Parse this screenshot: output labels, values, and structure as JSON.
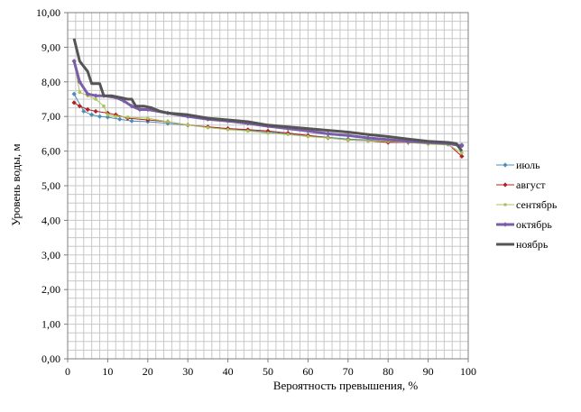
{
  "chart_data": {
    "type": "line",
    "xlabel": "Вероятность превышения, %",
    "ylabel": "Уровень воды, м",
    "xlim": [
      0,
      100
    ],
    "ylim": [
      0,
      10
    ],
    "x_ticks": [
      "0",
      "10",
      "20",
      "30",
      "40",
      "50",
      "60",
      "70",
      "80",
      "90",
      "100"
    ],
    "y_ticks": [
      "0,00",
      "1,00",
      "2,00",
      "3,00",
      "4,00",
      "5,00",
      "6,00",
      "7,00",
      "8,00",
      "9,00",
      "10,00"
    ],
    "grid": "minor, 2 by 0.25",
    "legend": "right",
    "series": [
      {
        "name": "июль",
        "color": "#4a8fb8",
        "width": 1,
        "marker": "diamond",
        "x": [
          1.6,
          4,
          6,
          8,
          10,
          13,
          16,
          20,
          25,
          30,
          35,
          40,
          45,
          50,
          55,
          60,
          65,
          70,
          75,
          80,
          85,
          90,
          95,
          98.4
        ],
        "y": [
          7.65,
          7.15,
          7.05,
          7.0,
          6.98,
          6.92,
          6.87,
          6.85,
          6.8,
          6.75,
          6.7,
          6.65,
          6.6,
          6.55,
          6.5,
          6.45,
          6.4,
          6.35,
          6.32,
          6.28,
          6.25,
          6.22,
          6.2,
          6.18
        ]
      },
      {
        "name": "август",
        "color": "#b22222",
        "width": 1,
        "marker": "diamond",
        "x": [
          1.6,
          3,
          5,
          7,
          10,
          12,
          15,
          20,
          25,
          30,
          35,
          40,
          45,
          50,
          55,
          60,
          65,
          70,
          75,
          80,
          85,
          90,
          95,
          98.4
        ],
        "y": [
          7.4,
          7.3,
          7.2,
          7.15,
          7.1,
          7.05,
          6.95,
          6.9,
          6.85,
          6.75,
          6.7,
          6.65,
          6.62,
          6.58,
          6.52,
          6.45,
          6.38,
          6.32,
          6.3,
          6.25,
          6.25,
          6.22,
          6.2,
          5.85
        ]
      },
      {
        "name": "сентябрь",
        "color": "#a8c45a",
        "width": 1,
        "marker": "dot",
        "x": [
          1.6,
          3,
          5,
          7,
          9,
          10,
          12,
          15,
          20,
          25,
          30,
          35,
          40,
          45,
          50,
          55,
          60,
          65,
          70,
          75,
          80,
          85,
          90,
          95,
          98.4
        ],
        "y": [
          8.6,
          7.7,
          7.6,
          7.5,
          7.3,
          7.05,
          7.0,
          6.98,
          6.95,
          6.85,
          6.75,
          6.68,
          6.62,
          6.58,
          6.52,
          6.48,
          6.42,
          6.38,
          6.32,
          6.3,
          6.28,
          6.25,
          6.2,
          6.18,
          5.95
        ]
      },
      {
        "name": "октябрь",
        "color": "#7b5ea7",
        "width": 3,
        "marker": "diamond",
        "x": [
          1.6,
          3,
          5,
          7,
          9,
          12,
          14,
          16,
          18,
          20,
          25,
          30,
          35,
          40,
          45,
          50,
          55,
          60,
          65,
          70,
          75,
          80,
          85,
          90,
          95,
          98.4
        ],
        "y": [
          8.6,
          8.0,
          7.65,
          7.6,
          7.6,
          7.55,
          7.45,
          7.3,
          7.2,
          7.2,
          7.1,
          7.0,
          6.92,
          6.87,
          6.8,
          6.72,
          6.65,
          6.58,
          6.5,
          6.45,
          6.38,
          6.33,
          6.28,
          6.25,
          6.22,
          6.15
        ]
      },
      {
        "name": "ноябрь",
        "color": "#555555",
        "width": 3,
        "marker": "none",
        "x": [
          1.6,
          3,
          5,
          6,
          8,
          9,
          11,
          13,
          15,
          16,
          17,
          19,
          21,
          23,
          25,
          30,
          35,
          40,
          45,
          50,
          55,
          60,
          65,
          70,
          75,
          80,
          85,
          90,
          95,
          97,
          98.4
        ],
        "y": [
          9.25,
          8.6,
          8.3,
          7.95,
          7.95,
          7.6,
          7.6,
          7.55,
          7.5,
          7.5,
          7.3,
          7.3,
          7.25,
          7.15,
          7.1,
          7.05,
          6.95,
          6.9,
          6.85,
          6.75,
          6.7,
          6.65,
          6.6,
          6.55,
          6.48,
          6.42,
          6.35,
          6.28,
          6.25,
          6.22,
          6.0
        ]
      }
    ]
  }
}
